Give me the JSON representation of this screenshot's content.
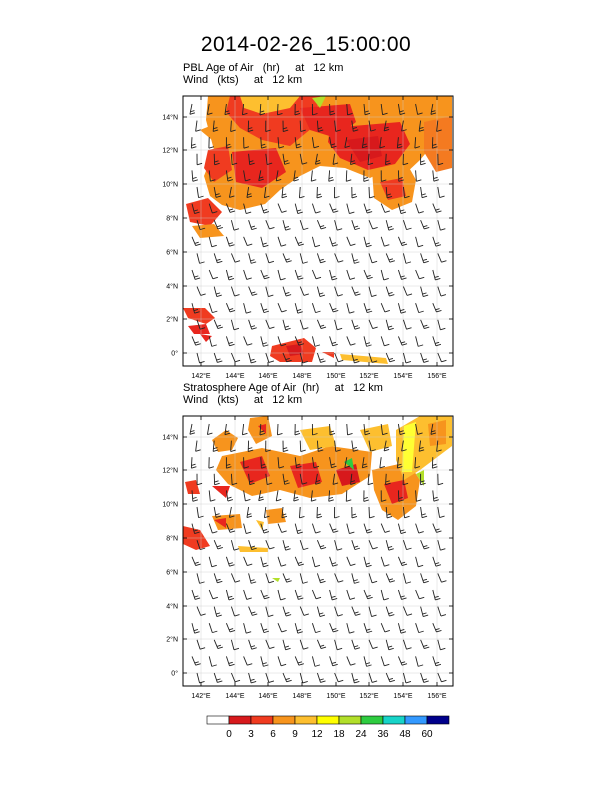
{
  "title": "2014-02-26_15:00:00",
  "panels": [
    {
      "field_line": "PBL Age of Air   (hr)     at   12 km",
      "wind_line": "Wind   (kts)     at   12 km"
    },
    {
      "field_line": "Stratosphere Age of Air  (hr)     at   12 km",
      "wind_line": "Wind   (kts)     at   12 km"
    }
  ],
  "lat_labels": [
    "0°",
    "2°N",
    "4°N",
    "6°N",
    "8°N",
    "10°N",
    "12°N",
    "14°N"
  ],
  "lon_labels": [
    "142°E",
    "144°E",
    "146°E",
    "148°E",
    "150°E",
    "152°E",
    "154°E",
    "156°E"
  ],
  "colorbar": {
    "labels": [
      "0",
      "3",
      "6",
      "9",
      "12",
      "18",
      "24",
      "36",
      "48",
      "60"
    ],
    "colors": [
      "#ffffff",
      "#d7191c",
      "#f03b20",
      "#f7941d",
      "#fdbf2f",
      "#ffff00",
      "#b2df2a",
      "#2ecc40",
      "#17d4c8",
      "#3399ff",
      "#00008b"
    ]
  },
  "palette": {
    "red": "#e8261e",
    "dark_red": "#d7191c",
    "orange": "#f47a20",
    "light_orange": "#f7a41d",
    "yellow_orange": "#fdbf2f",
    "yellow": "#ffff33",
    "green": "#4ed12e"
  }
}
